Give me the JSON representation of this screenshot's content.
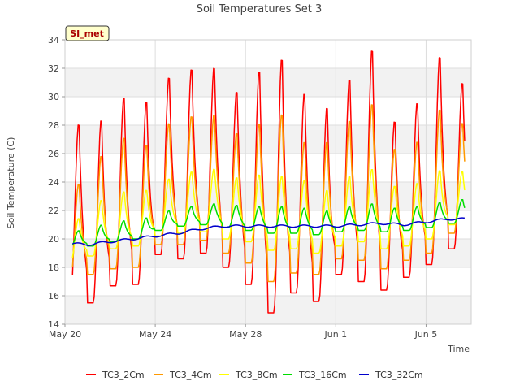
{
  "chart_data": {
    "type": "line",
    "title": "Soil Temperatures Set 3",
    "xlabel": "Time",
    "ylabel": "Soil Temperature (C)",
    "badge": "SI_met",
    "x_unit": "date",
    "x_range": [
      "2024-05-20",
      "2024-06-07"
    ],
    "xticks": [
      {
        "date": "2024-05-20",
        "label": "May 20"
      },
      {
        "date": "2024-05-24",
        "label": "May 24"
      },
      {
        "date": "2024-05-28",
        "label": "May 28"
      },
      {
        "date": "2024-06-01",
        "label": "Jun 1"
      },
      {
        "date": "2024-06-05",
        "label": "Jun 5"
      }
    ],
    "ylim": [
      14,
      34
    ],
    "yticks": [
      14,
      16,
      18,
      20,
      22,
      24,
      26,
      28,
      30,
      32,
      34
    ],
    "grid": true,
    "legend_position": "bottom",
    "series": [
      {
        "name": "TC3_2Cm",
        "color": "#ff0000",
        "data_start": "2024-05-20T08:00",
        "data_end": "2024-06-06T17:00",
        "daily_max": [
          28.3,
          28.6,
          30.2,
          29.9,
          31.6,
          32.2,
          32.3,
          30.6,
          32.1,
          33.0,
          30.5,
          29.5,
          31.5,
          33.6,
          28.5,
          29.8,
          33.1,
          31.2
        ],
        "daily_min": [
          16.0,
          15.5,
          16.7,
          16.8,
          18.9,
          18.6,
          19.0,
          18.0,
          16.8,
          14.8,
          16.2,
          15.6,
          17.5,
          17.0,
          16.4,
          17.3,
          18.2,
          19.3
        ]
      },
      {
        "name": "TC3_4Cm",
        "color": "#ff9900",
        "data_start": "2024-05-20T08:00",
        "data_end": "2024-06-06T17:00",
        "daily_max": [
          24.0,
          26.0,
          27.3,
          26.8,
          28.3,
          28.8,
          28.9,
          27.6,
          28.3,
          29.0,
          27.0,
          27.0,
          28.5,
          29.7,
          26.5,
          27.0,
          29.3,
          28.3
        ],
        "daily_min": [
          17.2,
          17.5,
          17.9,
          18.0,
          19.6,
          19.6,
          19.9,
          19.0,
          18.3,
          17.0,
          17.6,
          17.5,
          18.6,
          18.5,
          17.9,
          18.5,
          19.0,
          20.4
        ]
      },
      {
        "name": "TC3_8Cm",
        "color": "#ffff00",
        "data_start": "2024-05-20T08:00",
        "data_end": "2024-06-06T17:00",
        "daily_max": [
          21.5,
          22.8,
          23.4,
          23.5,
          24.3,
          24.8,
          25.0,
          24.4,
          24.6,
          24.5,
          24.2,
          23.5,
          24.5,
          25.0,
          23.8,
          24.0,
          24.9,
          24.8
        ],
        "daily_min": [
          18.3,
          18.8,
          19.3,
          19.5,
          20.2,
          20.4,
          20.5,
          20.0,
          19.8,
          19.2,
          19.3,
          19.0,
          19.5,
          19.8,
          19.3,
          19.5,
          20.0,
          21.0
        ]
      },
      {
        "name": "TC3_16Cm",
        "color": "#00dd00",
        "data_start": "2024-05-20T08:00",
        "data_end": "2024-06-06T17:00",
        "daily_max": [
          20.6,
          21.0,
          21.3,
          21.5,
          22.0,
          22.3,
          22.5,
          22.4,
          22.3,
          22.3,
          22.2,
          22.0,
          22.3,
          22.5,
          22.2,
          22.3,
          22.6,
          22.8
        ],
        "daily_min": [
          19.4,
          19.5,
          19.8,
          20.0,
          20.6,
          20.9,
          21.0,
          20.8,
          20.6,
          20.4,
          20.4,
          20.3,
          20.5,
          20.6,
          20.5,
          20.6,
          20.8,
          21.1
        ]
      },
      {
        "name": "TC3_32Cm",
        "color": "#0000cc",
        "data_start": "2024-05-20T08:00",
        "data_end": "2024-06-06T17:00",
        "daily_mean": [
          19.7,
          19.6,
          19.8,
          20.0,
          20.2,
          20.4,
          20.7,
          20.9,
          20.9,
          20.9,
          20.9,
          20.9,
          20.9,
          21.0,
          21.1,
          21.0,
          21.2,
          21.4
        ],
        "daily_amplitude": 0.08
      }
    ]
  }
}
